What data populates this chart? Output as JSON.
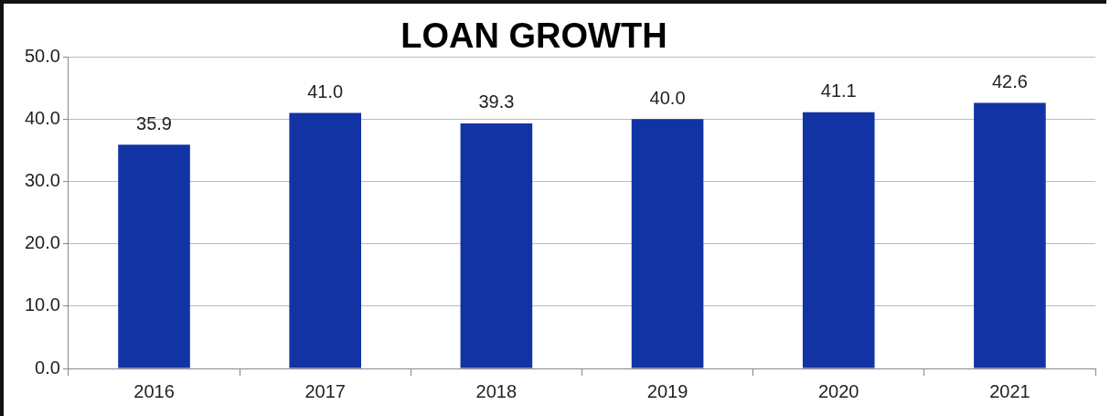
{
  "chart_data": {
    "type": "bar",
    "title": "LOAN GROWTH",
    "categories": [
      "2016",
      "2017",
      "2018",
      "2019",
      "2020",
      "2021"
    ],
    "values": [
      35.9,
      41.0,
      39.3,
      40.0,
      41.1,
      42.6
    ],
    "value_labels": [
      "35.9",
      "41.0",
      "39.3",
      "40.0",
      "41.1",
      "42.6"
    ],
    "color": "#1233a3",
    "ylim": [
      0,
      50
    ],
    "yticks": [
      {
        "value": 0,
        "label": "0.0"
      },
      {
        "value": 10,
        "label": "10.0"
      },
      {
        "value": 20,
        "label": "20.0"
      },
      {
        "value": 30,
        "label": "30.0"
      },
      {
        "value": 40,
        "label": "40.0"
      },
      {
        "value": 50,
        "label": "50.0"
      }
    ],
    "grid": "y",
    "legend": false
  }
}
